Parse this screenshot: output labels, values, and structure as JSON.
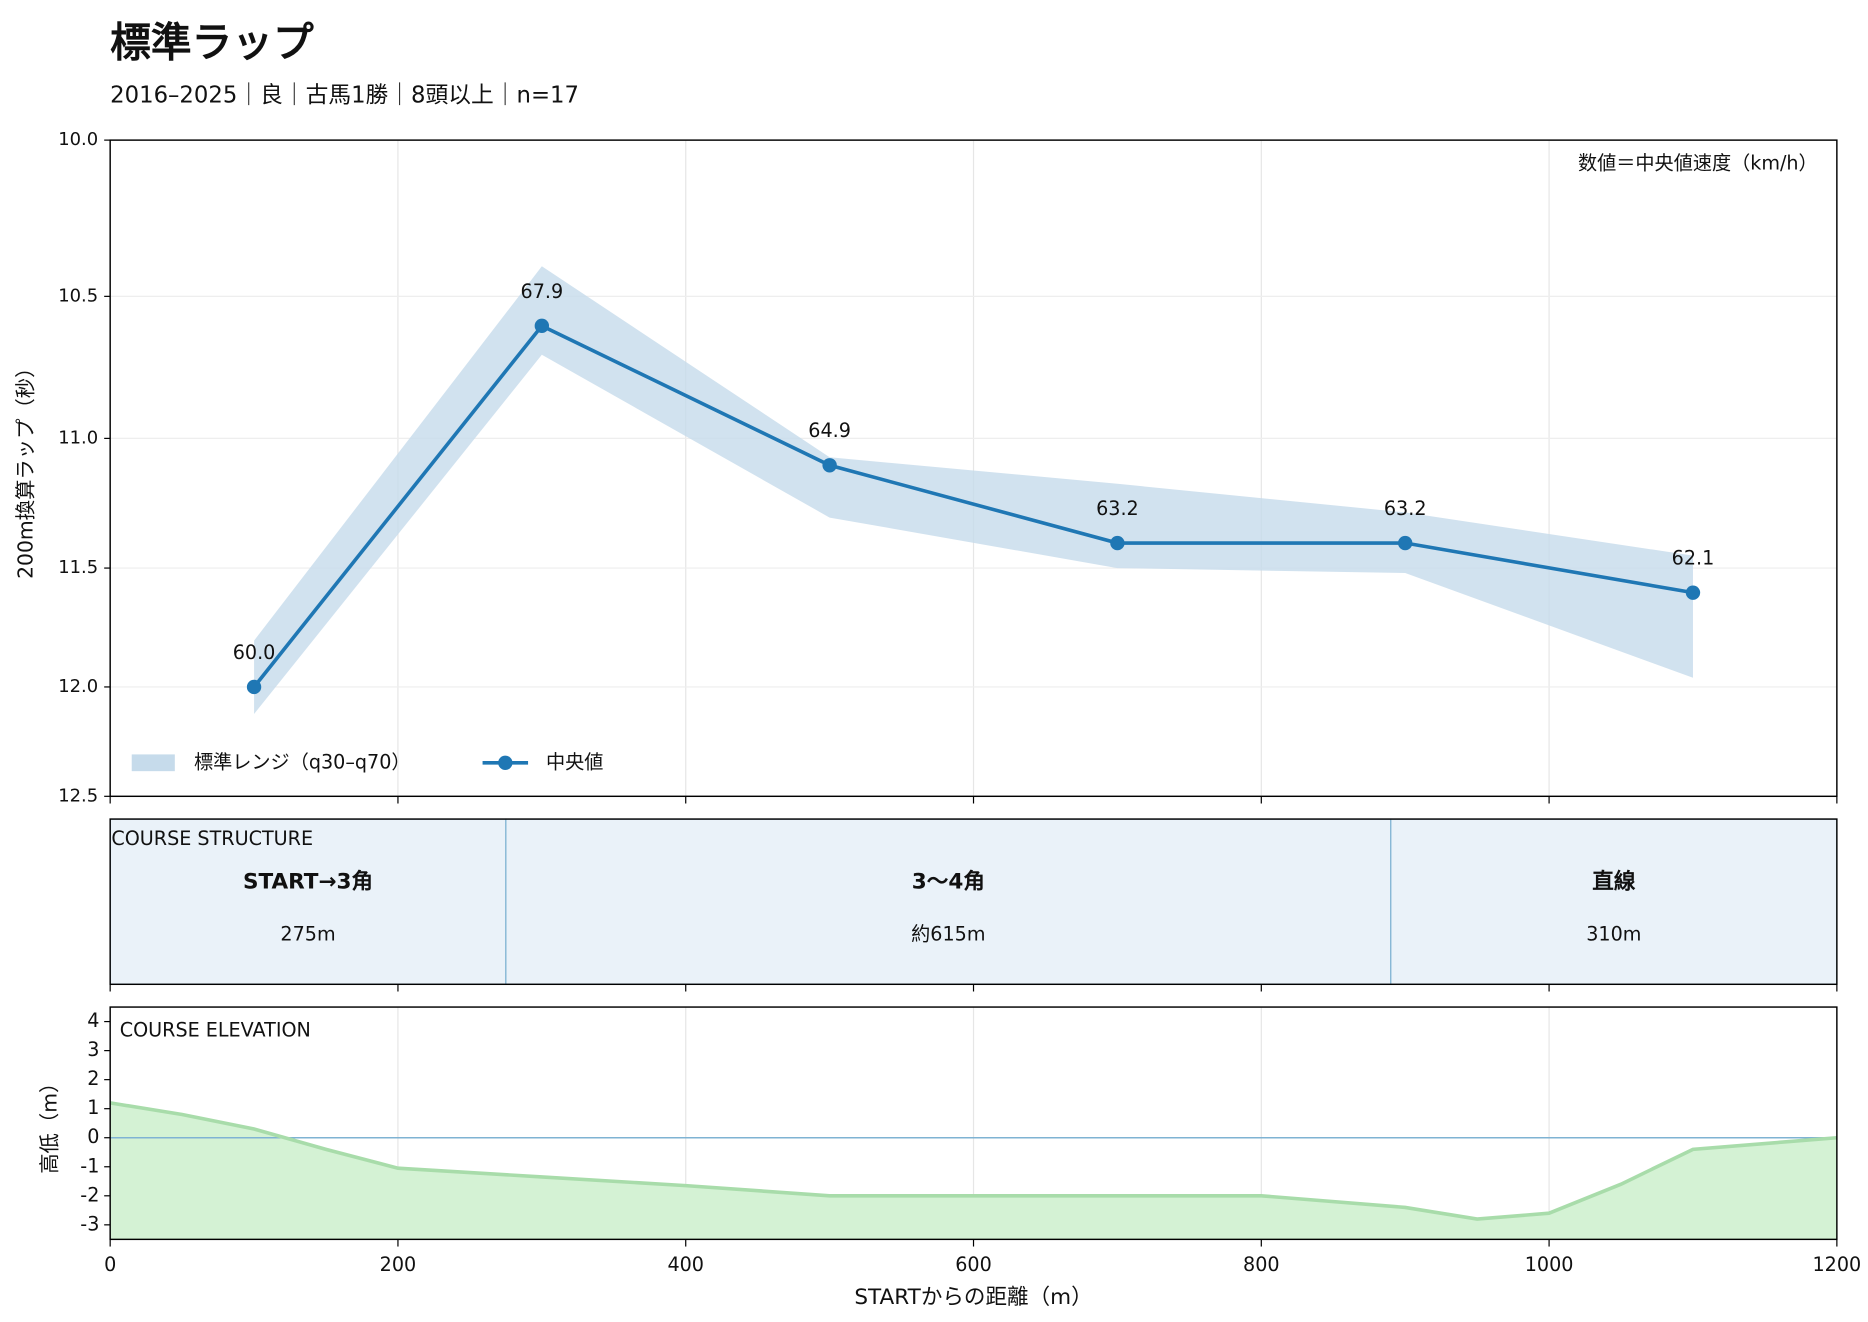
{
  "header": {
    "title": "標準ラップ",
    "subtitle": "2016–2025｜良｜古馬1勝｜8頭以上｜n=17"
  },
  "chart_data": [
    {
      "type": "line",
      "yscale": "reciprocal",
      "grid": true,
      "y_label": "200m換算ラップ（秒）",
      "annotation": "数値＝中央値速度（km/h）",
      "legend": "lower left",
      "xlim": [
        0,
        1200
      ],
      "xticks": [
        0,
        200,
        400,
        600,
        800,
        1000,
        1200
      ],
      "ylim": [
        10.0,
        12.5
      ],
      "yticks": [
        {
          "value": 10.0,
          "label": "10.0"
        },
        {
          "value": 10.5,
          "label": "10.5"
        },
        {
          "value": 11.0,
          "label": "11.0"
        },
        {
          "value": 11.5,
          "label": "11.5"
        },
        {
          "value": 12.0,
          "label": "12.0"
        },
        {
          "value": 12.5,
          "label": "12.5"
        }
      ],
      "x": [
        100,
        300,
        500,
        700,
        900,
        1100
      ],
      "band": {
        "name": "標準レンジ（q30–q70）",
        "color": "#c6dbeb",
        "q30": [
          11.8,
          10.4,
          11.07,
          11.17,
          11.28,
          11.45
        ],
        "q70": [
          12.12,
          10.7,
          11.3,
          11.5,
          11.52,
          11.96
        ]
      },
      "series": [
        {
          "name": "中央値",
          "color": "#1f77b4",
          "values": [
            12.0,
            10.6,
            11.1,
            11.4,
            11.4,
            11.6
          ],
          "speed_labels": [
            "60.0",
            "67.9",
            "64.9",
            "63.2",
            "63.2",
            "62.1"
          ]
        }
      ]
    },
    {
      "type": "segments",
      "title": "COURSE STRUCTURE",
      "color": "#eaf2f9",
      "sections": [
        {
          "name": "START→3角",
          "length": "275m",
          "start": 0,
          "end": 275
        },
        {
          "name": "3〜4角",
          "length": "約615m",
          "start": 275,
          "end": 890
        },
        {
          "name": "直線",
          "length": "310m",
          "start": 890,
          "end": 1200
        }
      ]
    },
    {
      "type": "area",
      "title": "COURSE ELEVATION",
      "y_label": "高低（m）",
      "x_label": "STARTからの距離（m）",
      "color": "#a8dcaa",
      "grid": true,
      "xlim": [
        0,
        1200
      ],
      "xticks": [
        0,
        200,
        400,
        600,
        800,
        1000,
        1200
      ],
      "ylim": [
        -3.5,
        4.5
      ],
      "yticks": [
        -3,
        -2,
        -1,
        0,
        1,
        2,
        3,
        4
      ],
      "x": [
        0,
        50,
        100,
        150,
        200,
        300,
        400,
        500,
        600,
        700,
        800,
        900,
        950,
        1000,
        1050,
        1100,
        1200
      ],
      "values": [
        1.2,
        0.8,
        0.3,
        -0.4,
        -1.05,
        -1.35,
        -1.65,
        -2.0,
        -2.0,
        -2.0,
        -2.0,
        -2.4,
        -2.8,
        -2.6,
        -1.6,
        -0.4,
        0
      ]
    }
  ]
}
